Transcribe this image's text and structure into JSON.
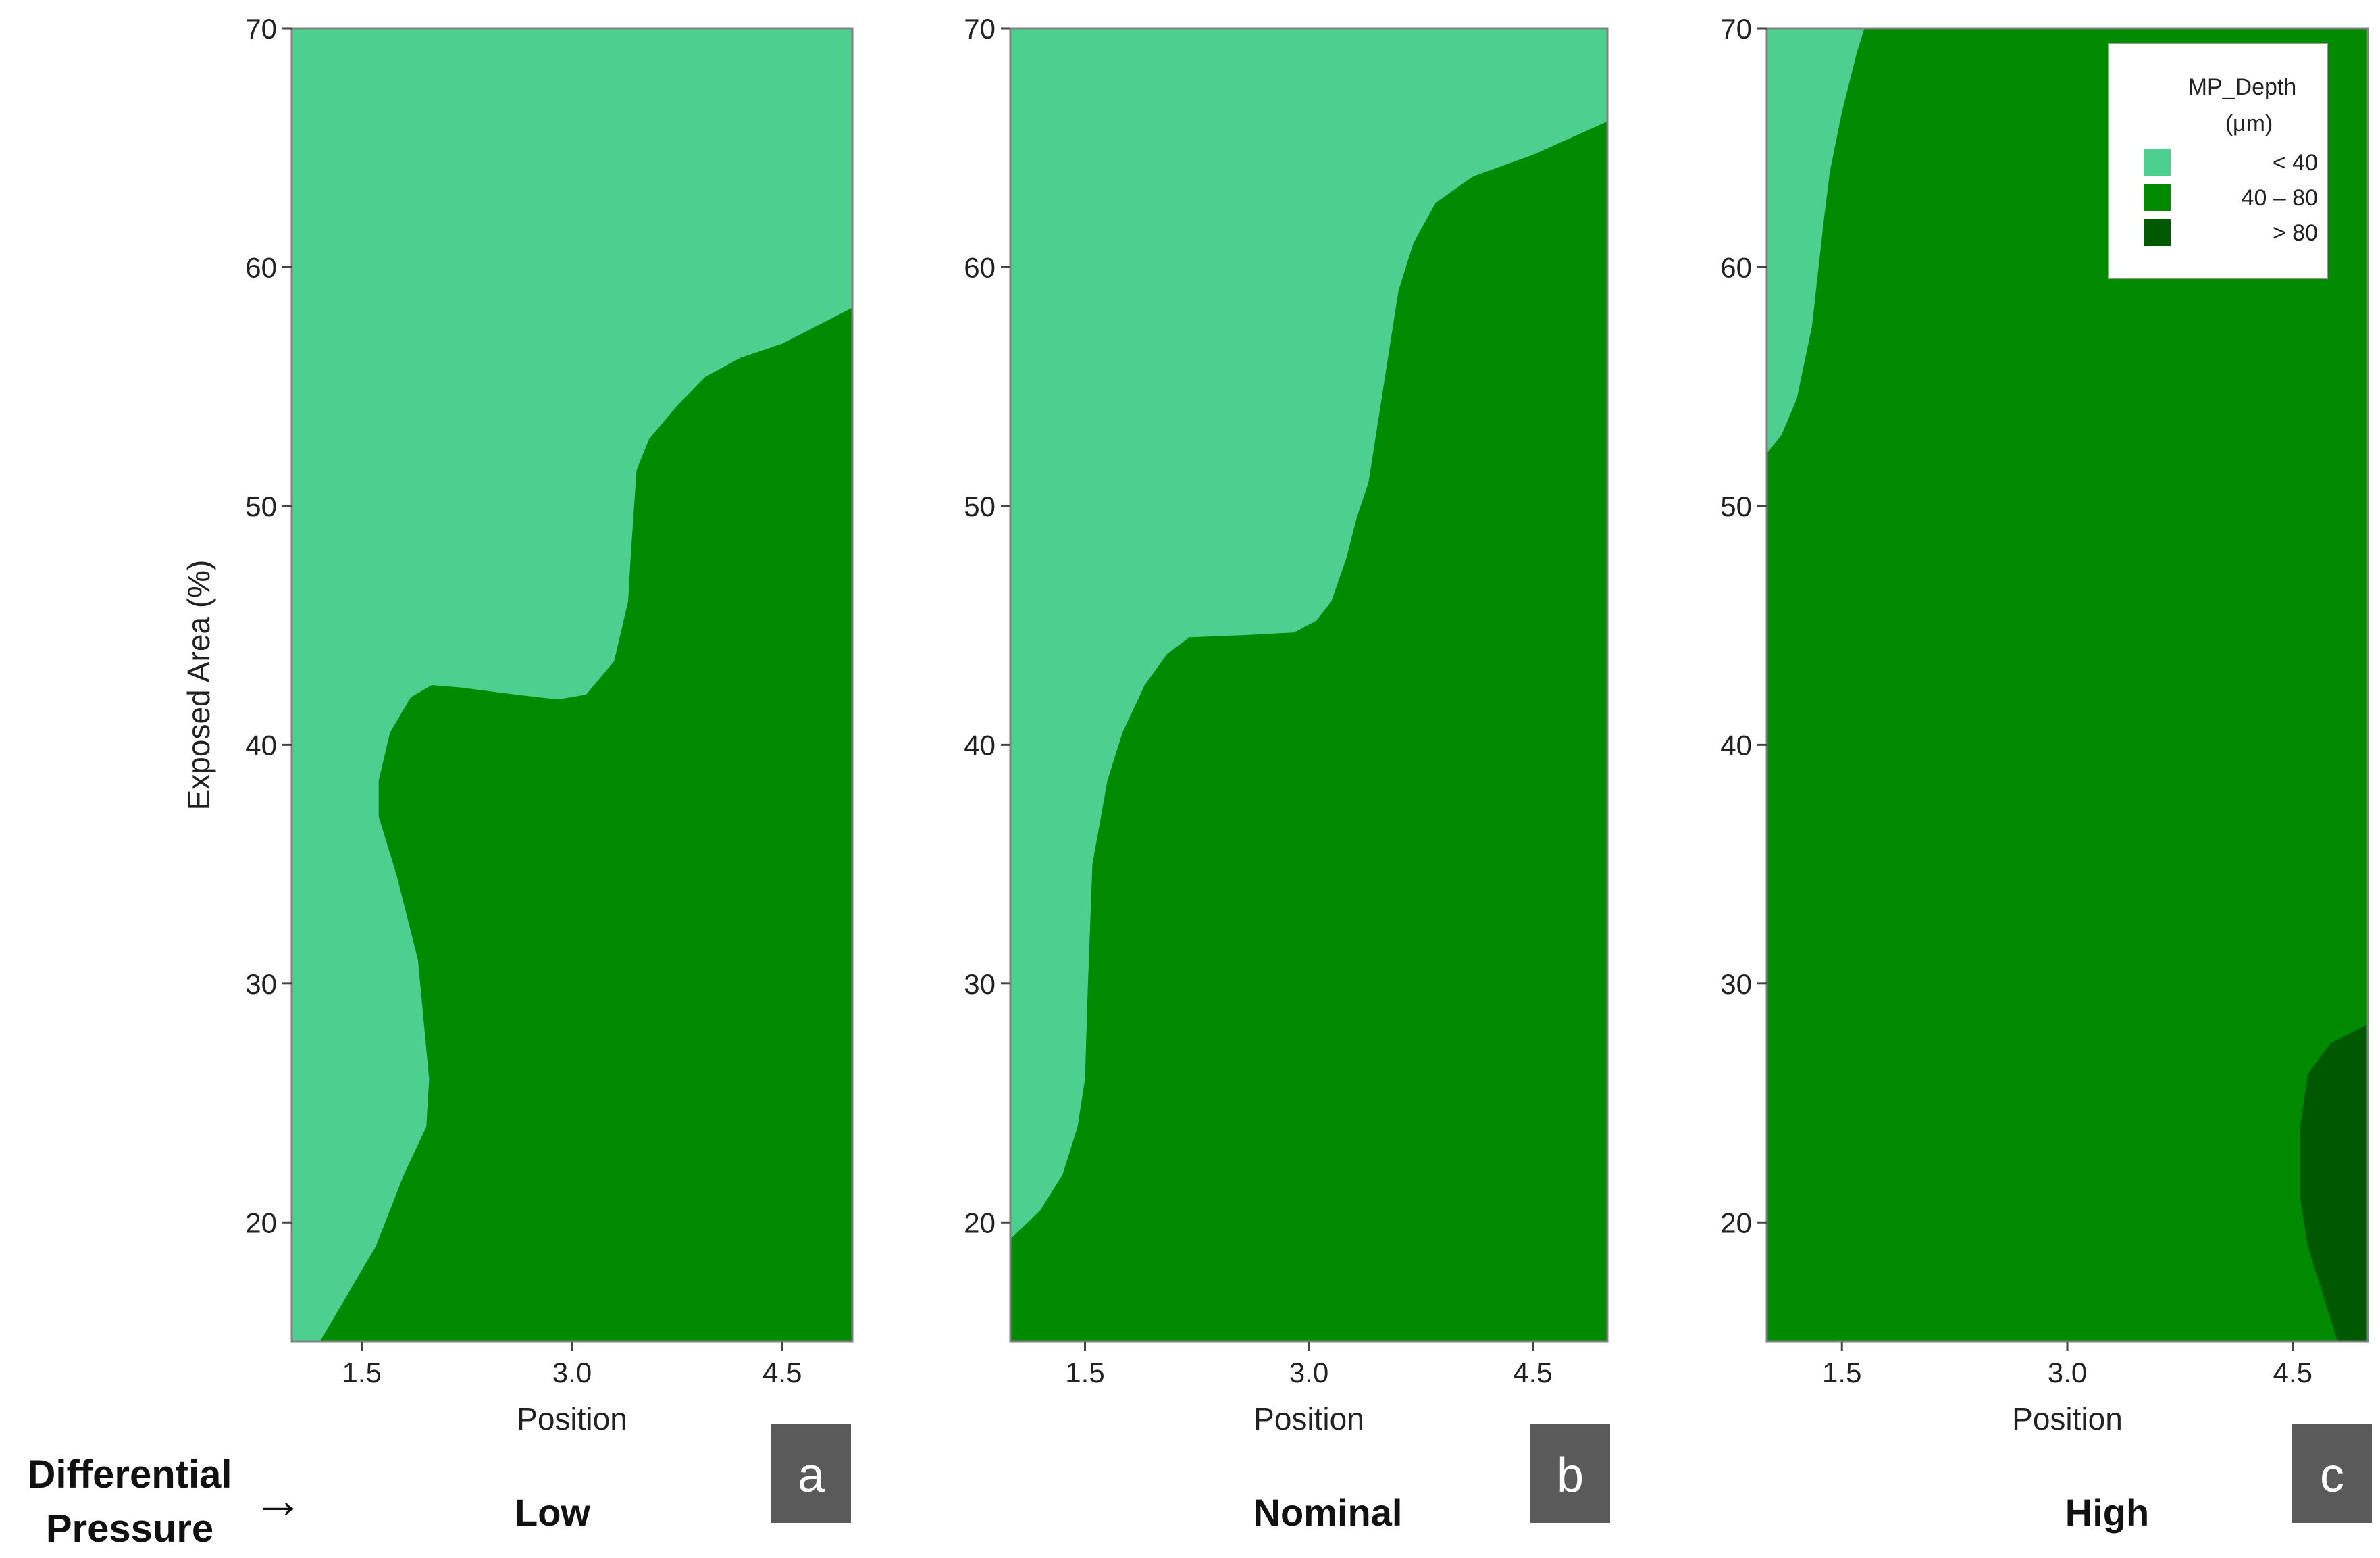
{
  "colors": {
    "low_region": "#4ccf8f",
    "mid_region": "#008a00",
    "high_region": "#005800",
    "badge": "#5a5a5a",
    "frame": "#808080"
  },
  "side_label": {
    "line1": "Differential",
    "line2": "Pressure",
    "arrow": "→"
  },
  "legend": {
    "title_line1": "MP_Depth",
    "title_line2": "(μm)",
    "items": [
      {
        "label": "<  40",
        "color": "#4ccf8f"
      },
      {
        "label": "40   –  80",
        "color": "#008a00"
      },
      {
        "label": ">  80",
        "color": "#005800"
      }
    ]
  },
  "chart_data": [
    {
      "type": "contour",
      "panel_letter": "a",
      "condition": "Low",
      "xlabel": "Position",
      "ylabel": "Exposed Area (%)",
      "xlim": [
        1.0,
        5.0
      ],
      "ylim": [
        15,
        70
      ],
      "xticks": [
        1.5,
        3.0,
        4.5
      ],
      "xtick_labels": [
        "1.5",
        "3.0",
        "4.5"
      ],
      "yticks": [
        20,
        30,
        40,
        50,
        60,
        70
      ],
      "ytick_labels": [
        "20",
        "30",
        "40",
        "50",
        "60",
        "70"
      ],
      "background_level": "< 40",
      "regions": [
        {
          "level": "40 – 80",
          "boundary": [
            [
              1.2,
              15
            ],
            [
              1.6,
              19
            ],
            [
              1.8,
              22
            ],
            [
              1.96,
              24
            ],
            [
              1.98,
              26
            ],
            [
              1.9,
              31
            ],
            [
              1.75,
              34.5
            ],
            [
              1.62,
              37
            ],
            [
              1.62,
              38.5
            ],
            [
              1.7,
              40.5
            ],
            [
              1.85,
              42
            ],
            [
              2.0,
              42.5
            ],
            [
              2.2,
              42.4
            ],
            [
              2.6,
              42.1
            ],
            [
              2.9,
              41.9
            ],
            [
              3.1,
              42.1
            ],
            [
              3.3,
              43.5
            ],
            [
              3.4,
              46
            ],
            [
              3.42,
              48
            ],
            [
              3.46,
              51.5
            ],
            [
              3.55,
              52.8
            ],
            [
              3.75,
              54.2
            ],
            [
              3.95,
              55.4
            ],
            [
              4.2,
              56.2
            ],
            [
              4.5,
              56.8
            ],
            [
              4.8,
              57.7
            ],
            [
              5.0,
              58.3
            ],
            [
              5.0,
              15
            ]
          ]
        }
      ]
    },
    {
      "type": "contour",
      "panel_letter": "b",
      "condition": "Nominal",
      "xlabel": "Position",
      "xlim": [
        1.0,
        5.0
      ],
      "ylim": [
        15,
        70
      ],
      "xticks": [
        1.5,
        3.0,
        4.5
      ],
      "xtick_labels": [
        "1.5",
        "3.0",
        "4.5"
      ],
      "yticks": [
        20,
        30,
        40,
        50,
        60,
        70
      ],
      "ytick_labels": [
        "20",
        "30",
        "40",
        "50",
        "60",
        "70"
      ],
      "background_level": "< 40",
      "regions": [
        {
          "level": "40 – 80",
          "boundary": [
            [
              1.0,
              15
            ],
            [
              1.0,
              19.3
            ],
            [
              1.2,
              20.5
            ],
            [
              1.35,
              22
            ],
            [
              1.45,
              24
            ],
            [
              1.5,
              26
            ],
            [
              1.52,
              30
            ],
            [
              1.55,
              35
            ],
            [
              1.65,
              38.5
            ],
            [
              1.75,
              40.5
            ],
            [
              1.9,
              42.5
            ],
            [
              2.05,
              43.8
            ],
            [
              2.2,
              44.5
            ],
            [
              2.6,
              44.6
            ],
            [
              2.9,
              44.7
            ],
            [
              3.05,
              45.2
            ],
            [
              3.15,
              46
            ],
            [
              3.25,
              47.8
            ],
            [
              3.32,
              49.5
            ],
            [
              3.4,
              51
            ],
            [
              3.5,
              55
            ],
            [
              3.6,
              59
            ],
            [
              3.7,
              61
            ],
            [
              3.85,
              62.7
            ],
            [
              4.1,
              63.8
            ],
            [
              4.5,
              64.7
            ],
            [
              5.0,
              66.1
            ],
            [
              5.0,
              15
            ]
          ]
        }
      ]
    },
    {
      "type": "contour",
      "panel_letter": "c",
      "condition": "High",
      "xlabel": "Position",
      "xlim": [
        1.0,
        5.0
      ],
      "ylim": [
        15,
        70
      ],
      "xticks": [
        1.5,
        3.0,
        4.5
      ],
      "xtick_labels": [
        "1.5",
        "3.0",
        "4.5"
      ],
      "yticks": [
        20,
        30,
        40,
        50,
        60,
        70
      ],
      "ytick_labels": [
        "20",
        "30",
        "40",
        "50",
        "60",
        "70"
      ],
      "background_level": "40 – 80",
      "regions": [
        {
          "level": "< 40",
          "boundary": [
            [
              1.0,
              52.2
            ],
            [
              1.1,
              53
            ],
            [
              1.2,
              54.5
            ],
            [
              1.3,
              57.5
            ],
            [
              1.38,
              62
            ],
            [
              1.42,
              64
            ],
            [
              1.5,
              66.5
            ],
            [
              1.6,
              69
            ],
            [
              1.65,
              70
            ],
            [
              1.0,
              70
            ]
          ]
        },
        {
          "level": "> 80",
          "boundary": [
            [
              5.0,
              28.3
            ],
            [
              4.75,
              27.5
            ],
            [
              4.6,
              26.2
            ],
            [
              4.55,
              24
            ],
            [
              4.55,
              21
            ],
            [
              4.6,
              19
            ],
            [
              4.7,
              17
            ],
            [
              4.8,
              15
            ],
            [
              5.0,
              15
            ]
          ]
        }
      ]
    }
  ]
}
